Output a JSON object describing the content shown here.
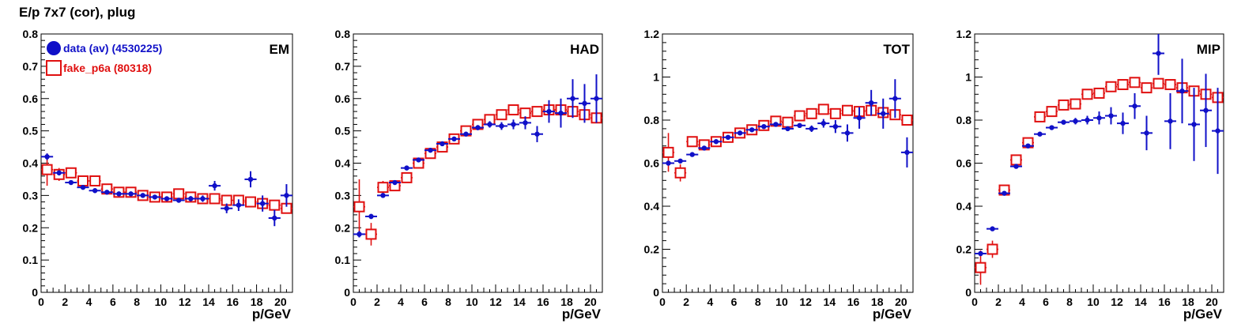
{
  "figure_title": "E/p 7x7 (cor), plug",
  "colors": {
    "data": "#1010c8",
    "fake": "#e01010",
    "axis": "#000000"
  },
  "legend": [
    {
      "label": "data (av) (4530225)",
      "marker": "filled-circle",
      "color": "#1010c8"
    },
    {
      "label": "fake_p6a (80318)",
      "marker": "open-square",
      "color": "#e01010"
    }
  ],
  "chart_data": [
    {
      "type": "scatter",
      "title": "EM",
      "xlabel": "p/GeV",
      "xlim": [
        0,
        21
      ],
      "ylim": [
        0,
        0.8
      ],
      "xticks": [
        0,
        2,
        4,
        6,
        8,
        10,
        12,
        14,
        16,
        18,
        20
      ],
      "yticks": [
        0,
        0.1,
        0.2,
        0.3,
        0.4,
        0.5,
        0.6,
        0.7,
        0.8
      ],
      "ytick_labels": [
        "0",
        "0.1",
        "0.2",
        "0.3",
        "0.4",
        "0.5",
        "0.6",
        "0.7",
        "0.8"
      ],
      "x": [
        0.5,
        1.5,
        2.5,
        3.5,
        4.5,
        5.5,
        6.5,
        7.5,
        8.5,
        9.5,
        10.5,
        11.5,
        12.5,
        13.5,
        14.5,
        15.5,
        16.5,
        17.5,
        18.5,
        19.5,
        20.5
      ],
      "series": [
        {
          "name": "data (av) (4530225)",
          "values": [
            0.42,
            0.37,
            0.34,
            0.325,
            0.315,
            0.31,
            0.305,
            0.305,
            0.3,
            0.295,
            0.29,
            0.285,
            0.29,
            0.29,
            0.33,
            0.26,
            0.27,
            0.35,
            0.275,
            0.23,
            0.3
          ],
          "errors": [
            0.01,
            0.008,
            0.006,
            0.005,
            0.005,
            0.005,
            0.005,
            0.005,
            0.005,
            0.005,
            0.006,
            0.006,
            0.008,
            0.01,
            0.015,
            0.015,
            0.018,
            0.025,
            0.025,
            0.025,
            0.035
          ]
        },
        {
          "name": "fake_p6a (80318)",
          "values": [
            0.38,
            0.365,
            0.37,
            0.345,
            0.345,
            0.32,
            0.31,
            0.31,
            0.3,
            0.295,
            0.295,
            0.305,
            0.295,
            0.29,
            0.29,
            0.285,
            0.285,
            0.28,
            0.275,
            0.27,
            0.26
          ],
          "errors": [
            0.05,
            0.02,
            0.01,
            0.01,
            0.01,
            0.01,
            0.01,
            0.01,
            0.01,
            0.01,
            0.01,
            0.01,
            0.01,
            0.01,
            0.01,
            0.01,
            0.01,
            0.01,
            0.01,
            0.01,
            0.01
          ]
        }
      ]
    },
    {
      "type": "scatter",
      "title": "HAD",
      "xlabel": "p/GeV",
      "xlim": [
        0,
        21
      ],
      "ylim": [
        0,
        0.8
      ],
      "xticks": [
        0,
        2,
        4,
        6,
        8,
        10,
        12,
        14,
        16,
        18,
        20
      ],
      "yticks": [
        0,
        0.1,
        0.2,
        0.3,
        0.4,
        0.5,
        0.6,
        0.7,
        0.8
      ],
      "ytick_labels": [
        "0",
        "0.1",
        "0.2",
        "0.3",
        "0.4",
        "0.5",
        "0.6",
        "0.7",
        "0.8"
      ],
      "x": [
        0.5,
        1.5,
        2.5,
        3.5,
        4.5,
        5.5,
        6.5,
        7.5,
        8.5,
        9.5,
        10.5,
        11.5,
        12.5,
        13.5,
        14.5,
        15.5,
        16.5,
        17.5,
        18.5,
        19.5,
        20.5
      ],
      "series": [
        {
          "name": "data (av) (4530225)",
          "values": [
            0.18,
            0.235,
            0.3,
            0.34,
            0.385,
            0.41,
            0.44,
            0.46,
            0.475,
            0.49,
            0.51,
            0.52,
            0.515,
            0.52,
            0.525,
            0.49,
            0.56,
            0.555,
            0.6,
            0.585,
            0.6
          ],
          "errors": [
            0.01,
            0.008,
            0.006,
            0.005,
            0.005,
            0.005,
            0.005,
            0.005,
            0.005,
            0.006,
            0.008,
            0.01,
            0.012,
            0.015,
            0.02,
            0.025,
            0.035,
            0.045,
            0.06,
            0.06,
            0.075
          ]
        },
        {
          "name": "fake_p6a (80318)",
          "values": [
            0.265,
            0.18,
            0.325,
            0.33,
            0.355,
            0.4,
            0.43,
            0.45,
            0.475,
            0.5,
            0.52,
            0.535,
            0.55,
            0.565,
            0.555,
            0.56,
            0.565,
            0.565,
            0.56,
            0.55,
            0.54
          ],
          "errors": [
            0.085,
            0.035,
            0.02,
            0.015,
            0.012,
            0.01,
            0.01,
            0.01,
            0.01,
            0.01,
            0.01,
            0.01,
            0.01,
            0.01,
            0.01,
            0.01,
            0.01,
            0.01,
            0.01,
            0.01,
            0.01
          ]
        }
      ]
    },
    {
      "type": "scatter",
      "title": "TOT",
      "xlabel": "p/GeV",
      "xlim": [
        0,
        21
      ],
      "ylim": [
        0,
        1.2
      ],
      "xticks": [
        0,
        2,
        4,
        6,
        8,
        10,
        12,
        14,
        16,
        18,
        20
      ],
      "yticks": [
        0,
        0.2,
        0.4,
        0.6,
        0.8,
        1.0,
        1.2
      ],
      "ytick_labels": [
        "0",
        "0.2",
        "0.4",
        "0.6",
        "0.8",
        "1",
        "1.2"
      ],
      "x": [
        0.5,
        1.5,
        2.5,
        3.5,
        4.5,
        5.5,
        6.5,
        7.5,
        8.5,
        9.5,
        10.5,
        11.5,
        12.5,
        13.5,
        14.5,
        15.5,
        16.5,
        17.5,
        18.5,
        19.5,
        20.5
      ],
      "series": [
        {
          "name": "data (av) (4530225)",
          "values": [
            0.6,
            0.61,
            0.64,
            0.67,
            0.7,
            0.72,
            0.74,
            0.755,
            0.77,
            0.78,
            0.76,
            0.775,
            0.76,
            0.785,
            0.77,
            0.74,
            0.81,
            0.88,
            0.83,
            0.9,
            0.65
          ],
          "errors": [
            0.01,
            0.008,
            0.006,
            0.005,
            0.005,
            0.005,
            0.005,
            0.005,
            0.005,
            0.006,
            0.008,
            0.01,
            0.015,
            0.02,
            0.03,
            0.04,
            0.05,
            0.06,
            0.07,
            0.09,
            0.07
          ]
        },
        {
          "name": "fake_p6a (80318)",
          "values": [
            0.65,
            0.555,
            0.7,
            0.685,
            0.7,
            0.72,
            0.74,
            0.755,
            0.775,
            0.795,
            0.79,
            0.82,
            0.83,
            0.85,
            0.83,
            0.845,
            0.84,
            0.845,
            0.835,
            0.825,
            0.8
          ],
          "errors": [
            0.09,
            0.04,
            0.02,
            0.015,
            0.012,
            0.01,
            0.01,
            0.01,
            0.01,
            0.01,
            0.01,
            0.01,
            0.01,
            0.01,
            0.01,
            0.01,
            0.01,
            0.01,
            0.01,
            0.01,
            0.01
          ]
        }
      ]
    },
    {
      "type": "scatter",
      "title": "MIP",
      "xlabel": "p/GeV",
      "xlim": [
        0,
        21
      ],
      "ylim": [
        0,
        1.2
      ],
      "xticks": [
        0,
        2,
        4,
        6,
        8,
        10,
        12,
        14,
        16,
        18,
        20
      ],
      "yticks": [
        0,
        0.2,
        0.4,
        0.6,
        0.8,
        1.0,
        1.2
      ],
      "ytick_labels": [
        "0",
        "0.2",
        "0.4",
        "0.6",
        "0.8",
        "1",
        "1.2"
      ],
      "x": [
        0.5,
        1.5,
        2.5,
        3.5,
        4.5,
        5.5,
        6.5,
        7.5,
        8.5,
        9.5,
        10.5,
        11.5,
        12.5,
        13.5,
        14.5,
        15.5,
        16.5,
        17.5,
        18.5,
        19.5,
        20.5
      ],
      "series": [
        {
          "name": "data (av) (4530225)",
          "values": [
            0.18,
            0.295,
            0.46,
            0.585,
            0.68,
            0.735,
            0.765,
            0.79,
            0.795,
            0.8,
            0.81,
            0.82,
            0.785,
            0.865,
            0.74,
            1.11,
            0.795,
            0.935,
            0.78,
            0.845,
            0.75
          ],
          "errors": [
            0.01,
            0.008,
            0.006,
            0.006,
            0.006,
            0.006,
            0.008,
            0.01,
            0.015,
            0.02,
            0.03,
            0.04,
            0.05,
            0.06,
            0.08,
            0.1,
            0.13,
            0.15,
            0.17,
            0.17,
            0.2
          ]
        },
        {
          "name": "fake_p6a (80318)",
          "values": [
            0.115,
            0.2,
            0.475,
            0.615,
            0.695,
            0.815,
            0.84,
            0.87,
            0.875,
            0.92,
            0.925,
            0.955,
            0.965,
            0.975,
            0.95,
            0.97,
            0.965,
            0.95,
            0.935,
            0.92,
            0.905
          ],
          "errors": [
            0.08,
            0.04,
            0.02,
            0.015,
            0.012,
            0.01,
            0.01,
            0.01,
            0.01,
            0.01,
            0.01,
            0.01,
            0.01,
            0.01,
            0.01,
            0.01,
            0.01,
            0.01,
            0.01,
            0.01,
            0.01
          ]
        }
      ]
    }
  ]
}
